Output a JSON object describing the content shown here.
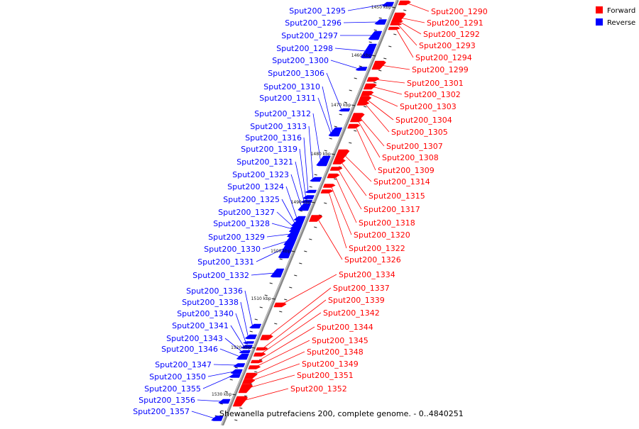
{
  "caption": "Shewanella putrefaciens 200, complete genome. - 0..4840251",
  "legend": [
    {
      "label": "Forward",
      "color": "#ff0000"
    },
    {
      "label": "Reverse",
      "color": "#0000ff"
    }
  ],
  "colors": {
    "forward": "#ff0000",
    "reverse": "#0000ff",
    "backbone": "#888888"
  },
  "ticks": [
    "1450 kbp",
    "1460 kbp",
    "1470 kbp",
    "1480 kbp",
    "1490 kbp",
    "1500 kbp",
    "1510 kbp",
    "1520 kbp",
    "1530 kbp"
  ],
  "genes_reverse": [
    "Sput200_1295",
    "Sput200_1296",
    "Sput200_1297",
    "Sput200_1298",
    "Sput200_1300",
    "Sput200_1306",
    "Sput200_1310",
    "Sput200_1311",
    "Sput200_1312",
    "Sput200_1313",
    "Sput200_1316",
    "Sput200_1319",
    "Sput200_1321",
    "Sput200_1323",
    "Sput200_1324",
    "Sput200_1325",
    "Sput200_1327",
    "Sput200_1328",
    "Sput200_1329",
    "Sput200_1330",
    "Sput200_1331",
    "Sput200_1332",
    "Sput200_1336",
    "Sput200_1338",
    "Sput200_1340",
    "Sput200_1341",
    "Sput200_1343",
    "Sput200_1346",
    "Sput200_1347",
    "Sput200_1350",
    "Sput200_1355",
    "Sput200_1356",
    "Sput200_1357"
  ],
  "genes_forward_upper": [
    "Sput200_1290",
    "Sput200_1291",
    "Sput200_1292",
    "Sput200_1293",
    "Sput200_1294",
    "Sput200_1299",
    "Sput200_1301",
    "Sput200_1302",
    "Sput200_1303",
    "Sput200_1304",
    "Sput200_1305",
    "Sput200_1307",
    "Sput200_1308",
    "Sput200_1309",
    "Sput200_1314",
    "Sput200_1315",
    "Sput200_1317",
    "Sput200_1318",
    "Sput200_1320",
    "Sput200_1322",
    "Sput200_1326"
  ],
  "genes_forward_lower": [
    "Sput200_1334",
    "Sput200_1337",
    "Sput200_1339",
    "Sput200_1342",
    "Sput200_1344",
    "Sput200_1345",
    "Sput200_1348",
    "Sput200_1349",
    "Sput200_1351",
    "Sput200_1352"
  ]
}
